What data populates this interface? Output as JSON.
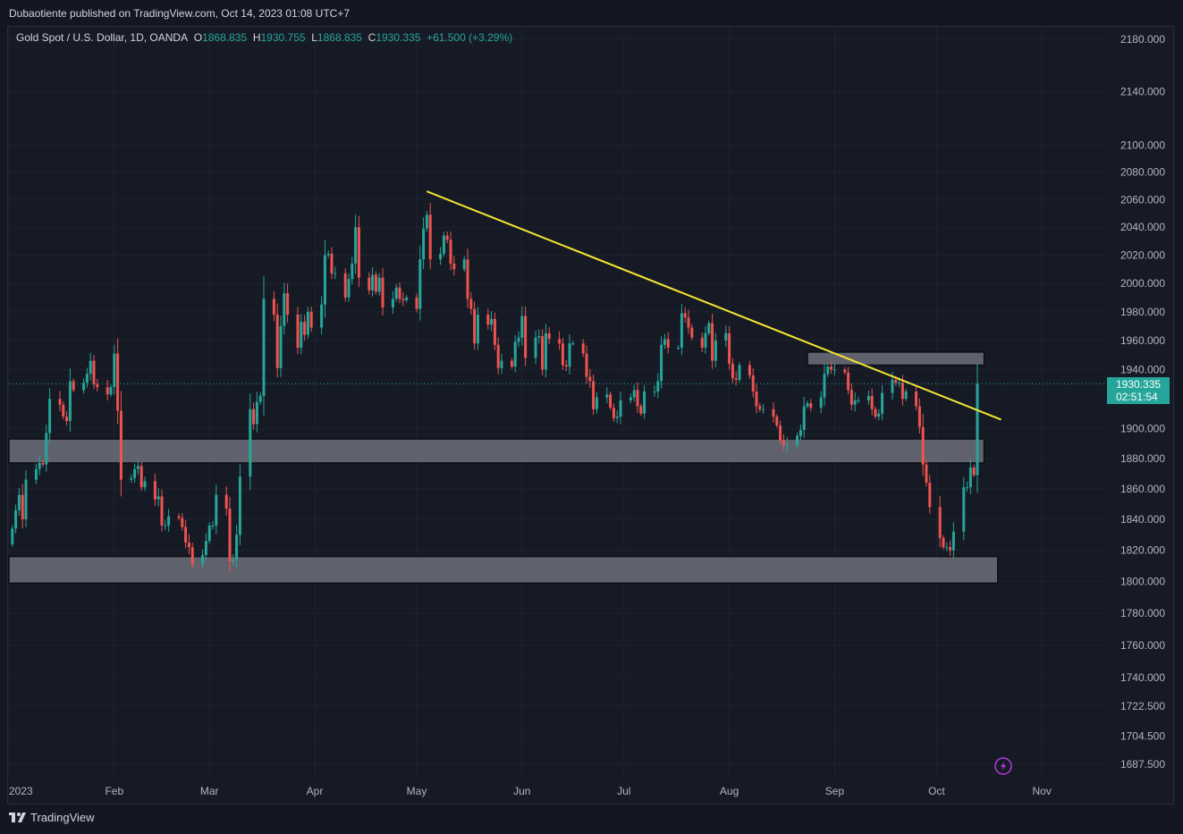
{
  "publisher": "Dubaotiente published on TradingView.com, Oct 14, 2023 01:08 UTC+7",
  "legend": {
    "symbol": "Gold Spot / U.S. Dollar, 1D, OANDA",
    "o_label": "O",
    "o_value": "1868.835",
    "h_label": "H",
    "h_value": "1930.755",
    "l_label": "L",
    "l_value": "1868.835",
    "c_label": "C",
    "c_value": "1930.335",
    "change": "+61.500 (+3.29%)"
  },
  "last_price": {
    "price": "1930.335",
    "countdown": "02:51:54"
  },
  "footer": {
    "brand": "TradingView"
  },
  "colors": {
    "up": "#26a69a",
    "down": "#ef5350",
    "trendline": "#f5e531",
    "zone": "#787b86",
    "background": "#131722"
  },
  "chart_data": {
    "type": "candlestick",
    "title": "Gold Spot / U.S. Dollar, 1D, OANDA",
    "ylim": [
      1687.5,
      2180
    ],
    "scale": "log",
    "y_ticks": [
      "2180.000",
      "2140.000",
      "2100.000",
      "2080.000",
      "2060.000",
      "2040.000",
      "2020.000",
      "2000.000",
      "1980.000",
      "1960.000",
      "1940.000",
      "1900.000",
      "1880.000",
      "1860.000",
      "1840.000",
      "1820.000",
      "1800.000",
      "1780.000",
      "1760.000",
      "1740.000",
      "1722.500",
      "1704.500",
      "1687.500"
    ],
    "x_ticks": [
      {
        "label": "2023",
        "date": "2023-01-01"
      },
      {
        "label": "Feb",
        "date": "2023-02-01"
      },
      {
        "label": "Mar",
        "date": "2023-03-01"
      },
      {
        "label": "Apr",
        "date": "2023-04-01"
      },
      {
        "label": "May",
        "date": "2023-05-01"
      },
      {
        "label": "Jun",
        "date": "2023-06-01"
      },
      {
        "label": "Jul",
        "date": "2023-07-01"
      },
      {
        "label": "Aug",
        "date": "2023-08-01"
      },
      {
        "label": "Sep",
        "date": "2023-09-01"
      },
      {
        "label": "Oct",
        "date": "2023-10-01"
      },
      {
        "label": "Nov",
        "date": "2023-11-01"
      }
    ],
    "closes": [
      [
        "2023-01-02",
        1834
      ],
      [
        "2023-01-03",
        1846
      ],
      [
        "2023-01-04",
        1856
      ],
      [
        "2023-01-05",
        1840
      ],
      [
        "2023-01-06",
        1866
      ],
      [
        "2023-01-09",
        1873
      ],
      [
        "2023-01-10",
        1877
      ],
      [
        "2023-01-11",
        1876
      ],
      [
        "2023-01-12",
        1897
      ],
      [
        "2023-01-13",
        1920
      ],
      [
        "2023-01-16",
        1916
      ],
      [
        "2023-01-17",
        1908
      ],
      [
        "2023-01-18",
        1905
      ],
      [
        "2023-01-19",
        1932
      ],
      [
        "2023-01-20",
        1926
      ],
      [
        "2023-01-23",
        1931
      ],
      [
        "2023-01-24",
        1937
      ],
      [
        "2023-01-25",
        1946
      ],
      [
        "2023-01-26",
        1930
      ],
      [
        "2023-01-27",
        1928
      ],
      [
        "2023-01-30",
        1923
      ],
      [
        "2023-01-31",
        1928
      ],
      [
        "2023-02-01",
        1951
      ],
      [
        "2023-02-02",
        1912
      ],
      [
        "2023-02-03",
        1866
      ],
      [
        "2023-02-06",
        1867
      ],
      [
        "2023-02-07",
        1873
      ],
      [
        "2023-02-08",
        1875
      ],
      [
        "2023-02-09",
        1861
      ],
      [
        "2023-02-10",
        1865
      ],
      [
        "2023-02-13",
        1853
      ],
      [
        "2023-02-14",
        1855
      ],
      [
        "2023-02-15",
        1836
      ],
      [
        "2023-02-16",
        1836
      ],
      [
        "2023-02-17",
        1842
      ],
      [
        "2023-02-20",
        1841
      ],
      [
        "2023-02-21",
        1835
      ],
      [
        "2023-02-22",
        1825
      ],
      [
        "2023-02-23",
        1822
      ],
      [
        "2023-02-24",
        1811
      ],
      [
        "2023-02-27",
        1817
      ],
      [
        "2023-02-28",
        1826
      ],
      [
        "2023-03-01",
        1836
      ],
      [
        "2023-03-02",
        1836
      ],
      [
        "2023-03-03",
        1856
      ],
      [
        "2023-03-06",
        1847
      ],
      [
        "2023-03-07",
        1813
      ],
      [
        "2023-03-08",
        1814
      ],
      [
        "2023-03-09",
        1830
      ],
      [
        "2023-03-10",
        1868
      ],
      [
        "2023-03-13",
        1913
      ],
      [
        "2023-03-14",
        1903
      ],
      [
        "2023-03-15",
        1918
      ],
      [
        "2023-03-16",
        1922
      ],
      [
        "2023-03-17",
        1989
      ],
      [
        "2023-03-20",
        1978
      ],
      [
        "2023-03-21",
        1941
      ],
      [
        "2023-03-22",
        1970
      ],
      [
        "2023-03-23",
        1993
      ],
      [
        "2023-03-24",
        1978
      ],
      [
        "2023-03-27",
        1955
      ],
      [
        "2023-03-28",
        1973
      ],
      [
        "2023-03-29",
        1964
      ],
      [
        "2023-03-30",
        1980
      ],
      [
        "2023-03-31",
        1969
      ],
      [
        "2023-04-03",
        1985
      ],
      [
        "2023-04-04",
        2020
      ],
      [
        "2023-04-05",
        2021
      ],
      [
        "2023-04-06",
        2007
      ],
      [
        "2023-04-07",
        2007
      ],
      [
        "2023-04-10",
        1990
      ],
      [
        "2023-04-11",
        2003
      ],
      [
        "2023-04-12",
        2014
      ],
      [
        "2023-04-13",
        2040
      ],
      [
        "2023-04-14",
        2004
      ],
      [
        "2023-04-17",
        1995
      ],
      [
        "2023-04-18",
        2006
      ],
      [
        "2023-04-19",
        1994
      ],
      [
        "2023-04-20",
        2004
      ],
      [
        "2023-04-21",
        1983
      ],
      [
        "2023-04-24",
        1989
      ],
      [
        "2023-04-25",
        1997
      ],
      [
        "2023-04-26",
        1989
      ],
      [
        "2023-04-27",
        1988
      ],
      [
        "2023-04-28",
        1990
      ],
      [
        "2023-05-01",
        1982
      ],
      [
        "2023-05-02",
        2017
      ],
      [
        "2023-05-03",
        2039
      ],
      [
        "2023-05-04",
        2049
      ],
      [
        "2023-05-05",
        2017
      ],
      [
        "2023-05-08",
        2021
      ],
      [
        "2023-05-09",
        2034
      ],
      [
        "2023-05-10",
        2031
      ],
      [
        "2023-05-11",
        2014
      ],
      [
        "2023-05-12",
        2010
      ],
      [
        "2023-05-15",
        2017
      ],
      [
        "2023-05-16",
        1989
      ],
      [
        "2023-05-17",
        1982
      ],
      [
        "2023-05-18",
        1958
      ],
      [
        "2023-05-19",
        1978
      ],
      [
        "2023-05-22",
        1971
      ],
      [
        "2023-05-23",
        1975
      ],
      [
        "2023-05-24",
        1957
      ],
      [
        "2023-05-25",
        1941
      ],
      [
        "2023-05-26",
        1946
      ],
      [
        "2023-05-29",
        1942
      ],
      [
        "2023-05-30",
        1959
      ],
      [
        "2023-05-31",
        1962
      ],
      [
        "2023-06-01",
        1977
      ],
      [
        "2023-06-02",
        1948
      ],
      [
        "2023-06-05",
        1962
      ],
      [
        "2023-06-06",
        1963
      ],
      [
        "2023-06-07",
        1940
      ],
      [
        "2023-06-08",
        1965
      ],
      [
        "2023-06-09",
        1961
      ],
      [
        "2023-06-12",
        1958
      ],
      [
        "2023-06-13",
        1943
      ],
      [
        "2023-06-14",
        1942
      ],
      [
        "2023-06-15",
        1958
      ],
      [
        "2023-06-16",
        1958
      ],
      [
        "2023-06-19",
        1951
      ],
      [
        "2023-06-20",
        1935
      ],
      [
        "2023-06-21",
        1932
      ],
      [
        "2023-06-22",
        1913
      ],
      [
        "2023-06-23",
        1921
      ],
      [
        "2023-06-26",
        1923
      ],
      [
        "2023-06-27",
        1914
      ],
      [
        "2023-06-28",
        1907
      ],
      [
        "2023-06-29",
        1908
      ],
      [
        "2023-06-30",
        1919
      ],
      [
        "2023-07-03",
        1921
      ],
      [
        "2023-07-04",
        1926
      ],
      [
        "2023-07-05",
        1915
      ],
      [
        "2023-07-06",
        1910
      ],
      [
        "2023-07-07",
        1925
      ],
      [
        "2023-07-10",
        1925
      ],
      [
        "2023-07-11",
        1932
      ],
      [
        "2023-07-12",
        1957
      ],
      [
        "2023-07-13",
        1961
      ],
      [
        "2023-07-14",
        1955
      ],
      [
        "2023-07-17",
        1955
      ],
      [
        "2023-07-18",
        1979
      ],
      [
        "2023-07-19",
        1976
      ],
      [
        "2023-07-20",
        1969
      ],
      [
        "2023-07-21",
        1962
      ],
      [
        "2023-07-24",
        1955
      ],
      [
        "2023-07-25",
        1965
      ],
      [
        "2023-07-26",
        1972
      ],
      [
        "2023-07-27",
        1946
      ],
      [
        "2023-07-28",
        1960
      ],
      [
        "2023-07-31",
        1965
      ],
      [
        "2023-08-01",
        1944
      ],
      [
        "2023-08-02",
        1934
      ],
      [
        "2023-08-03",
        1933
      ],
      [
        "2023-08-04",
        1943
      ],
      [
        "2023-08-07",
        1936
      ],
      [
        "2023-08-08",
        1925
      ],
      [
        "2023-08-09",
        1915
      ],
      [
        "2023-08-10",
        1913
      ],
      [
        "2023-08-11",
        1913
      ],
      [
        "2023-08-14",
        1908
      ],
      [
        "2023-08-15",
        1902
      ],
      [
        "2023-08-16",
        1892
      ],
      [
        "2023-08-17",
        1889
      ],
      [
        "2023-08-18",
        1889
      ],
      [
        "2023-08-21",
        1895
      ],
      [
        "2023-08-22",
        1899
      ],
      [
        "2023-08-23",
        1915
      ],
      [
        "2023-08-24",
        1917
      ],
      [
        "2023-08-25",
        1914
      ],
      [
        "2023-08-28",
        1921
      ],
      [
        "2023-08-29",
        1937
      ],
      [
        "2023-08-30",
        1942
      ],
      [
        "2023-08-31",
        1940
      ],
      [
        "2023-09-01",
        1940
      ],
      [
        "2023-09-04",
        1938
      ],
      [
        "2023-09-05",
        1926
      ],
      [
        "2023-09-06",
        1916
      ],
      [
        "2023-09-07",
        1919
      ],
      [
        "2023-09-08",
        1919
      ],
      [
        "2023-09-11",
        1922
      ],
      [
        "2023-09-12",
        1913
      ],
      [
        "2023-09-13",
        1908
      ],
      [
        "2023-09-14",
        1910
      ],
      [
        "2023-09-15",
        1924
      ],
      [
        "2023-09-18",
        1933
      ],
      [
        "2023-09-19",
        1931
      ],
      [
        "2023-09-20",
        1931
      ],
      [
        "2023-09-21",
        1920
      ],
      [
        "2023-09-22",
        1925
      ],
      [
        "2023-09-25",
        1915
      ],
      [
        "2023-09-26",
        1901
      ],
      [
        "2023-09-27",
        1876
      ],
      [
        "2023-09-28",
        1864
      ],
      [
        "2023-09-29",
        1848
      ],
      [
        "2023-10-02",
        1828
      ],
      [
        "2023-10-03",
        1822
      ],
      [
        "2023-10-04",
        1822
      ],
      [
        "2023-10-05",
        1820
      ],
      [
        "2023-10-06",
        1832
      ],
      [
        "2023-10-09",
        1861
      ],
      [
        "2023-10-10",
        1861
      ],
      [
        "2023-10-11",
        1874
      ],
      [
        "2023-10-12",
        1869
      ],
      [
        "2023-10-13",
        1930.335
      ]
    ],
    "trendline": [
      {
        "date": "2023-05-04",
        "price": 2066
      },
      {
        "date": "2023-10-20",
        "price": 1906
      }
    ],
    "zones": [
      {
        "from": "2023-01-01",
        "to": "2023-10-15",
        "low": 1877,
        "high": 1893
      },
      {
        "from": "2023-01-01",
        "to": "2023-10-19",
        "low": 1799,
        "high": 1816
      },
      {
        "from": "2023-08-24",
        "to": "2023-10-15",
        "low": 1943,
        "high": 1952
      }
    ],
    "last_close": 1930.335,
    "grid": true
  }
}
